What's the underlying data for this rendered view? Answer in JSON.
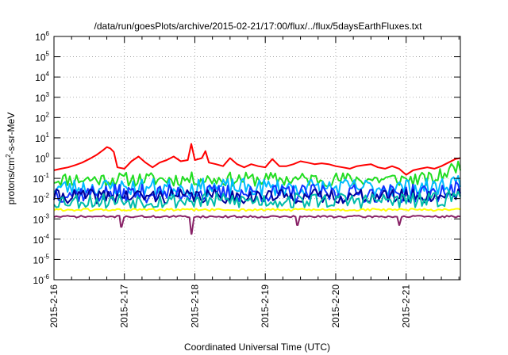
{
  "chart_data": {
    "type": "line",
    "title": "/data/run/goesPlots/archive/2015-02-21/17:00/flux/../flux/5daysEarthFluxes.txt",
    "xlabel": "Coordinated Universal Time (UTC)",
    "ylabel": {
      "prefix": "protons/cm",
      "superscript": "2",
      "suffix": "-s-sr-MeV"
    },
    "y_scale": "log",
    "ylim": [
      1e-06,
      1000000.0
    ],
    "y_ticks": [
      {
        "base": "10",
        "exp": "-6",
        "value": 1e-06
      },
      {
        "base": "10",
        "exp": "-5",
        "value": 1e-05
      },
      {
        "base": "10",
        "exp": "-4",
        "value": 0.0001
      },
      {
        "base": "10",
        "exp": "-3",
        "value": 0.001
      },
      {
        "base": "10",
        "exp": "-2",
        "value": 0.01
      },
      {
        "base": "10",
        "exp": "-1",
        "value": 0.1
      },
      {
        "base": "10",
        "exp": "0",
        "value": 1
      },
      {
        "base": "10",
        "exp": "1",
        "value": 10
      },
      {
        "base": "10",
        "exp": "2",
        "value": 100
      },
      {
        "base": "10",
        "exp": "3",
        "value": 1000
      },
      {
        "base": "10",
        "exp": "4",
        "value": 10000
      },
      {
        "base": "10",
        "exp": "5",
        "value": 100000
      },
      {
        "base": "10",
        "exp": "6",
        "value": 1000000
      }
    ],
    "xlim": [
      0,
      5.77
    ],
    "x_ticks": [
      {
        "label": "2015-2-16",
        "day": 0
      },
      {
        "label": "2015-2-17",
        "day": 1
      },
      {
        "label": "2015-2-18",
        "day": 2
      },
      {
        "label": "2015-2-19",
        "day": 3
      },
      {
        "label": "2015-2-20",
        "day": 4
      },
      {
        "label": "2015-2-21",
        "day": 5
      }
    ],
    "grid": true,
    "series": [
      {
        "color": "#ff0000",
        "points": [
          [
            0.0,
            0.25
          ],
          [
            0.1,
            0.3
          ],
          [
            0.2,
            0.35
          ],
          [
            0.3,
            0.45
          ],
          [
            0.4,
            0.6
          ],
          [
            0.5,
            0.9
          ],
          [
            0.6,
            1.4
          ],
          [
            0.7,
            2.5
          ],
          [
            0.75,
            3.5
          ],
          [
            0.8,
            3.0
          ],
          [
            0.85,
            2.0
          ],
          [
            0.9,
            0.35
          ],
          [
            1.0,
            0.3
          ],
          [
            1.1,
            0.7
          ],
          [
            1.2,
            1.2
          ],
          [
            1.3,
            0.6
          ],
          [
            1.4,
            0.35
          ],
          [
            1.5,
            0.6
          ],
          [
            1.6,
            0.8
          ],
          [
            1.7,
            1.2
          ],
          [
            1.8,
            0.7
          ],
          [
            1.9,
            0.8
          ],
          [
            1.95,
            5.0
          ],
          [
            2.0,
            0.8
          ],
          [
            2.1,
            1.0
          ],
          [
            2.15,
            2.2
          ],
          [
            2.2,
            0.6
          ],
          [
            2.3,
            0.5
          ],
          [
            2.4,
            0.4
          ],
          [
            2.5,
            1.0
          ],
          [
            2.6,
            0.5
          ],
          [
            2.7,
            0.35
          ],
          [
            2.8,
            0.5
          ],
          [
            2.9,
            0.4
          ],
          [
            3.0,
            0.35
          ],
          [
            3.1,
            0.9
          ],
          [
            3.2,
            0.4
          ],
          [
            3.3,
            0.4
          ],
          [
            3.4,
            0.5
          ],
          [
            3.5,
            0.7
          ],
          [
            3.6,
            0.6
          ],
          [
            3.7,
            0.5
          ],
          [
            3.8,
            0.55
          ],
          [
            3.9,
            0.5
          ],
          [
            4.0,
            0.4
          ],
          [
            4.1,
            0.35
          ],
          [
            4.2,
            0.3
          ],
          [
            4.3,
            0.4
          ],
          [
            4.4,
            0.45
          ],
          [
            4.5,
            0.5
          ],
          [
            4.6,
            0.35
          ],
          [
            4.7,
            0.3
          ],
          [
            4.8,
            0.4
          ],
          [
            4.9,
            0.3
          ],
          [
            5.0,
            0.15
          ],
          [
            5.1,
            0.25
          ],
          [
            5.2,
            0.3
          ],
          [
            5.3,
            0.35
          ],
          [
            5.4,
            0.3
          ],
          [
            5.5,
            0.4
          ],
          [
            5.6,
            0.6
          ],
          [
            5.7,
            0.9
          ],
          [
            5.77,
            1.0
          ]
        ]
      },
      {
        "color": "#22dd22",
        "base": 0.09,
        "amp": 0.35,
        "seed": 11,
        "end": 0.5
      },
      {
        "color": "#00bbff",
        "base": 0.035,
        "amp": 0.45,
        "seed": 23,
        "end": 0.08
      },
      {
        "color": "#1133ff",
        "base": 0.018,
        "amp": 0.45,
        "seed": 37,
        "end": 0.03
      },
      {
        "color": "#000099",
        "base": 0.013,
        "amp": 0.35,
        "seed": 41,
        "end": 0.02
      },
      {
        "color": "#00bbaa",
        "base": 0.008,
        "amp": 0.4,
        "seed": 53,
        "end": 0.015
      },
      {
        "color": "#ffff00",
        "base": 0.0028,
        "amp": 0.06,
        "seed": 61,
        "end": 0.003
      },
      {
        "color": "#882266",
        "base": 0.0013,
        "amp": 0.05,
        "seed": 71,
        "end": 0.0013,
        "dips": [
          [
            0.95,
            0.0004
          ],
          [
            1.95,
            0.00018
          ],
          [
            3.45,
            0.0005
          ],
          [
            4.9,
            0.0005
          ]
        ]
      }
    ]
  }
}
